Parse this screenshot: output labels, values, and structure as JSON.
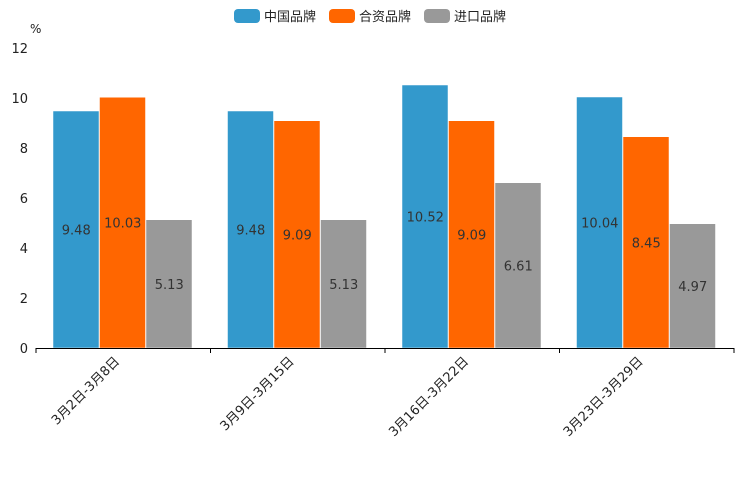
{
  "chart_data": {
    "type": "bar",
    "title": "",
    "ylabel": "%",
    "xlabel": "",
    "ylim": [
      0,
      12
    ],
    "yticks": [
      0,
      2,
      4,
      6,
      8,
      10,
      12
    ],
    "grid": false,
    "legend_position": "top-center",
    "categories": [
      "3月2日-3月8日",
      "3月9日-3月15日",
      "3月16日-3月22日",
      "3月23日-3月29日"
    ],
    "series": [
      {
        "name": "中国品牌",
        "color": "#3399CC",
        "values": [
          9.48,
          9.48,
          10.52,
          10.04
        ],
        "labels": [
          "9.48",
          "9.48",
          "10.52",
          "10.04"
        ]
      },
      {
        "name": "合资品牌",
        "color": "#FF6600",
        "values": [
          10.03,
          9.09,
          9.09,
          8.45
        ],
        "labels": [
          "10.03",
          "9.09",
          "9.09",
          "8.45"
        ]
      },
      {
        "name": "进口品牌",
        "color": "#999999",
        "values": [
          5.13,
          5.13,
          6.61,
          4.97
        ],
        "labels": [
          "5.13",
          "5.13",
          "6.61",
          "4.97"
        ]
      }
    ]
  }
}
